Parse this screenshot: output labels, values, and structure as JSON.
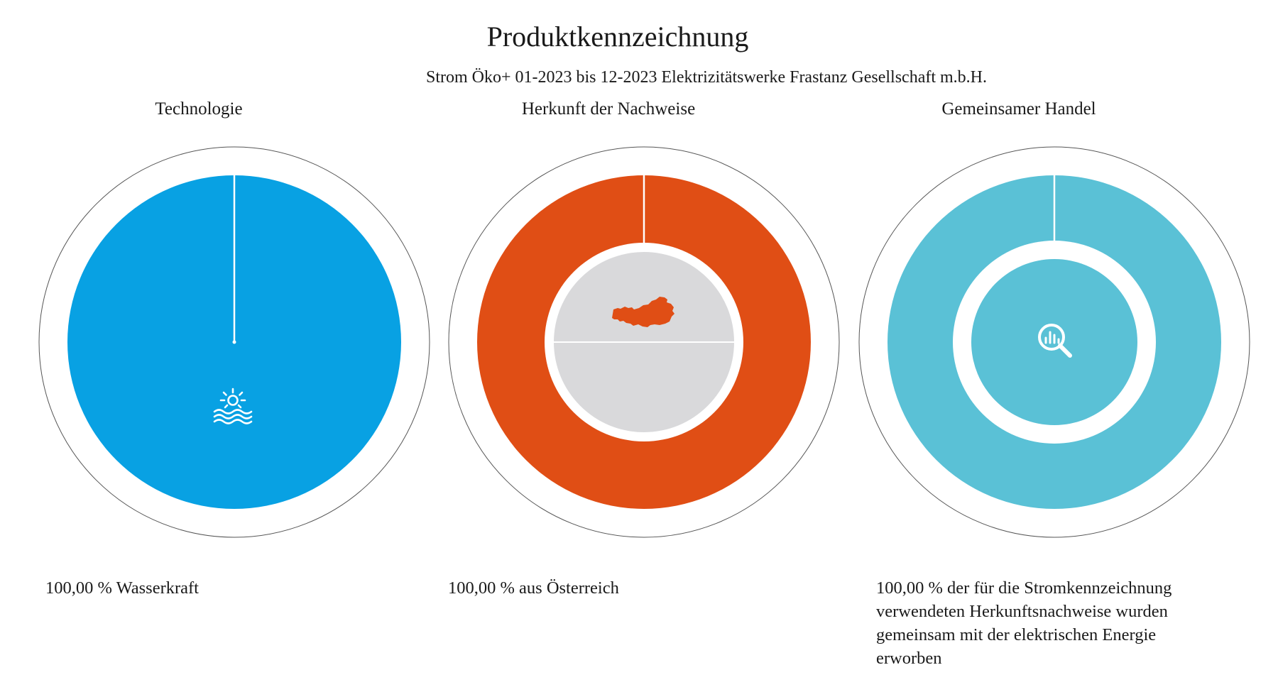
{
  "page": {
    "title": "Produktkennzeichnung",
    "subtitle": "Strom Öko+ 01-2023 bis 12-2023 Elektrizitätswerke Frastanz Gesellschaft m.b.H."
  },
  "chart_data": [
    {
      "type": "pie",
      "title": "Technologie",
      "slices": [
        {
          "label": "Wasserkraft",
          "value": 100.0
        }
      ],
      "caption": "100,00 % Wasserkraft",
      "color": "#08a1e3",
      "icon": "hydro-power-icon"
    },
    {
      "type": "pie",
      "title": "Herkunft der Nachweise",
      "slices": [
        {
          "label": "Österreich",
          "value": 100.0
        }
      ],
      "caption": "100,00 % aus Österreich",
      "color": "#e04e15",
      "inner_color": "#d9d9db",
      "icon": "austria-map-icon"
    },
    {
      "type": "pie",
      "title": "Gemeinsamer Handel",
      "slices": [
        {
          "label": "gemeinsam erworben",
          "value": 100.0
        }
      ],
      "caption": "100,00 % der für die Stromkennzeichnung verwendeten Herkunftsnachweise wurden gemeinsam mit der elektrischen Energie erworben",
      "color": "#5ac1d6",
      "icon": "magnifier-chart-icon"
    }
  ]
}
